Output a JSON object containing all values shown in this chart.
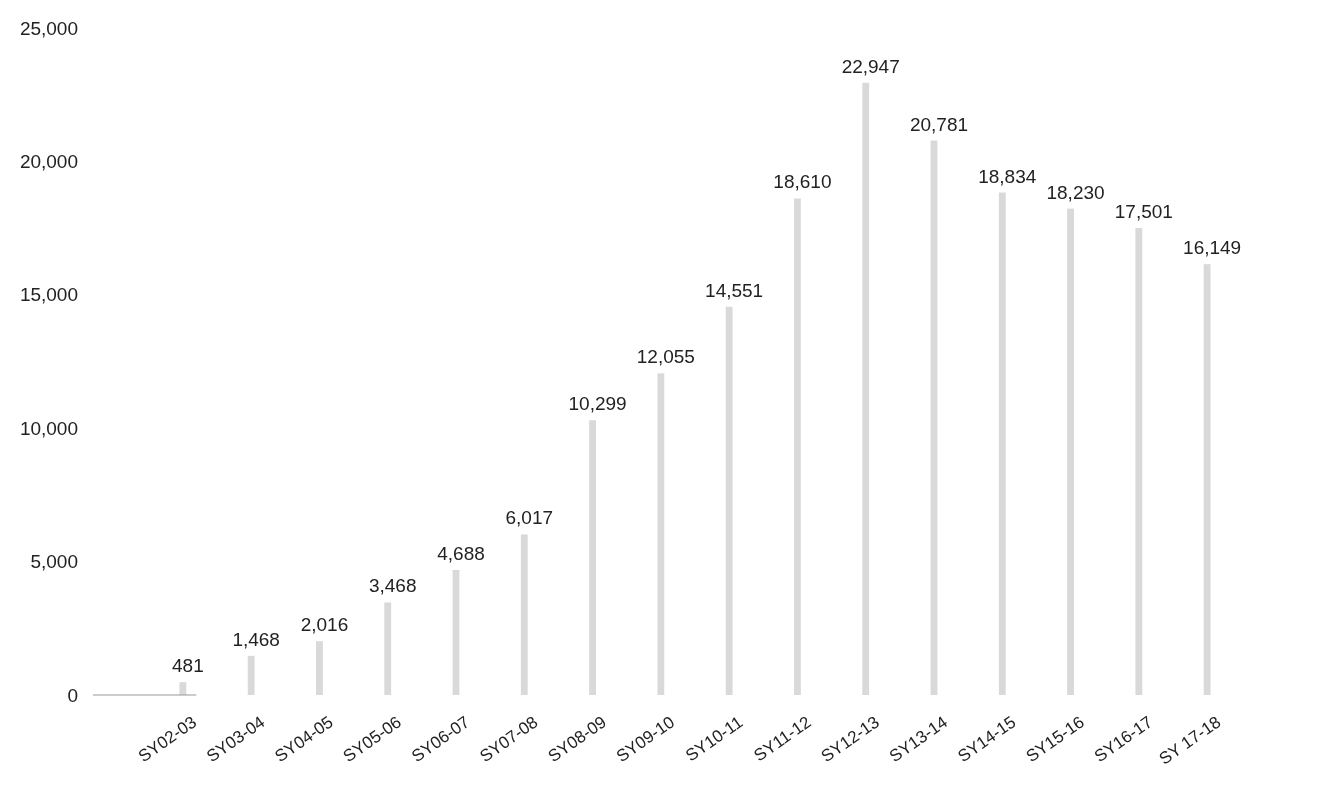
{
  "chart_data": {
    "type": "bar",
    "categories": [
      "SY02-03",
      "SY03-04",
      "SY04-05",
      "SY05-06",
      "SY06-07",
      "SY07-08",
      "SY08-09",
      "SY09-10",
      "SY10-11",
      "SY11-12",
      "SY12-13",
      "SY13-14",
      "SY14-15",
      "SY15-16",
      "SY16-17",
      "SY 17-18"
    ],
    "values": [
      481,
      1468,
      2016,
      3468,
      4688,
      6017,
      10299,
      12055,
      14551,
      18610,
      22947,
      20781,
      18834,
      18230,
      17501,
      16149
    ],
    "color": "#d9d9d9",
    "ylim": [
      0,
      25000
    ],
    "yticks": [
      {
        "value": 0,
        "label": "0"
      },
      {
        "value": 5000,
        "label": "5,000"
      },
      {
        "value": 10000,
        "label": "10,000"
      },
      {
        "value": 15000,
        "label": "15,000"
      },
      {
        "value": 20000,
        "label": "20,000"
      },
      {
        "value": 25000,
        "label": "25,000"
      }
    ],
    "value_labels": [
      "481",
      "1,468",
      "2,016",
      "3,468",
      "4,688",
      "6,017",
      "10,299",
      "12,055",
      "14,551",
      "18,610",
      "22,947",
      "20,781",
      "18,834",
      "18,230",
      "17,501",
      "16,149"
    ]
  }
}
